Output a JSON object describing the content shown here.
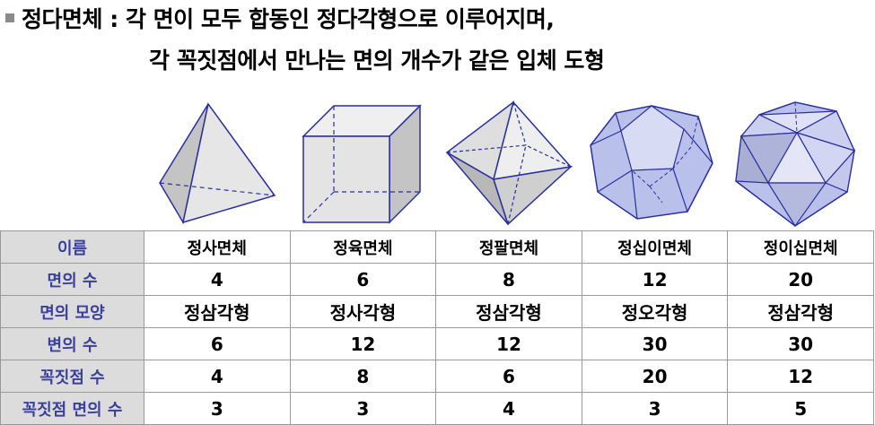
{
  "title": {
    "line1": "정다면체 : 각 면이 모두 합동인 정다각형으로 이루어지며,",
    "line2": "각 꼭짓점에서 만나는 면의 개수가 같은 입체 도형"
  },
  "figures": [
    {
      "icon": "tetrahedron-icon"
    },
    {
      "icon": "cube-icon"
    },
    {
      "icon": "octahedron-icon"
    },
    {
      "icon": "dodecahedron-icon"
    },
    {
      "icon": "icosahedron-icon"
    }
  ],
  "table": {
    "rows": [
      {
        "header": "이름",
        "cells": [
          "정사면체",
          "정육면체",
          "정팔면체",
          "정십이면체",
          "정이십면체"
        ]
      },
      {
        "header": "면의 수",
        "cells": [
          "4",
          "6",
          "8",
          "12",
          "20"
        ]
      },
      {
        "header": "면의 모양",
        "cells": [
          "정삼각형",
          "정사각형",
          "정삼각형",
          "정오각형",
          "정삼각형"
        ]
      },
      {
        "header": "변의 수",
        "cells": [
          "6",
          "12",
          "12",
          "30",
          "30"
        ]
      },
      {
        "header": "꼭짓점 수",
        "cells": [
          "4",
          "8",
          "6",
          "20",
          "12"
        ]
      },
      {
        "header": "꼭짓점 면의 수",
        "cells": [
          "3",
          "3",
          "4",
          "3",
          "5"
        ]
      }
    ]
  },
  "colors": {
    "header_bg": "#dcdcdc",
    "header_text": "#3b3f9e",
    "gray_face": "#c8c8c8",
    "blue_face": "#b9c0ea",
    "edge": "#2a2fa0"
  }
}
